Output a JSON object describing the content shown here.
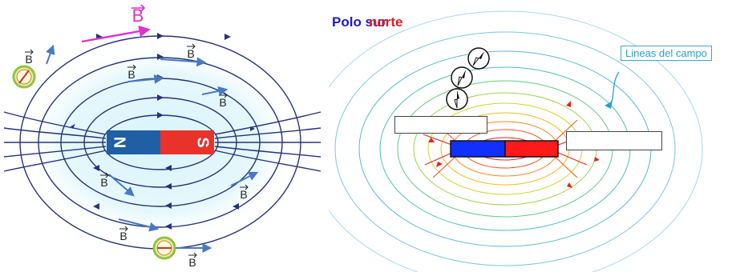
{
  "left_diagram": {
    "field_symbol": "B",
    "pole_north": "N",
    "pole_south": "S",
    "colors": {
      "field_line": "#27337a",
      "north": "#1f5fa3",
      "south": "#e8322a",
      "highlight_vector": "#e02fd2",
      "vector": "#4a79c2",
      "glow": "#cdeff8"
    }
  },
  "right_diagram": {
    "title_part1": "Polo sur",
    "title_part2": "norte",
    "callout_label": "Lineas del campo",
    "colors": {
      "title_part1": "#1b1bd6",
      "title_part2": "#e02020",
      "magnet_left": "#1030ff",
      "magnet_right": "#ff1a1a",
      "callout": "#2a9fd0"
    }
  }
}
